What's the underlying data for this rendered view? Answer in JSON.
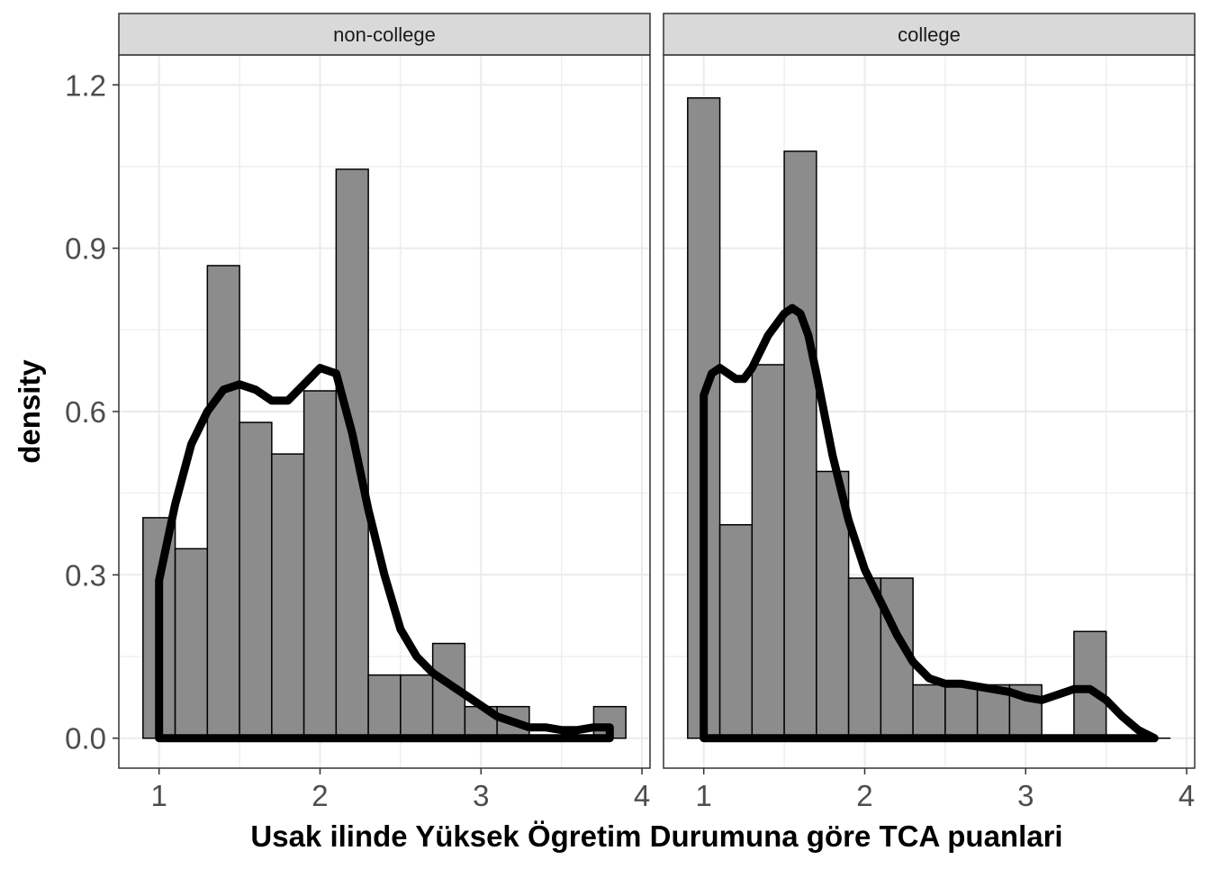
{
  "chart_data": {
    "type": "histogram",
    "xlabel": "Usak ilinde Yüksek Ögretim Durumuna göre TCA puanlari",
    "ylabel": "density",
    "xlim": [
      0.75,
      4.05
    ],
    "ylim": [
      -0.055,
      1.255
    ],
    "x_ticks": [
      1,
      2,
      3,
      4
    ],
    "y_ticks": [
      0.0,
      0.3,
      0.6,
      0.9,
      1.2
    ],
    "y_tick_labels": [
      "0.0",
      "0.3",
      "0.6",
      "0.9",
      "1.2"
    ],
    "grid": true,
    "bin_width": 0.2,
    "colors": {
      "bar_fill": "#8c8c8c",
      "bar_stroke": "#000000",
      "density_line": "#000000",
      "strip_fill": "#d9d9d9",
      "grid": "#ebebeb"
    },
    "panels": [
      {
        "strip": "non-college",
        "bins": [
          {
            "x0": 0.9,
            "x1": 1.1,
            "density": 0.405
          },
          {
            "x0": 1.1,
            "x1": 1.3,
            "density": 0.348
          },
          {
            "x0": 1.3,
            "x1": 1.5,
            "density": 0.868
          },
          {
            "x0": 1.5,
            "x1": 1.7,
            "density": 0.58
          },
          {
            "x0": 1.7,
            "x1": 1.9,
            "density": 0.522
          },
          {
            "x0": 1.9,
            "x1": 2.1,
            "density": 0.638
          },
          {
            "x0": 2.1,
            "x1": 2.3,
            "density": 1.045
          },
          {
            "x0": 2.3,
            "x1": 2.5,
            "density": 0.116
          },
          {
            "x0": 2.5,
            "x1": 2.7,
            "density": 0.116
          },
          {
            "x0": 2.7,
            "x1": 2.9,
            "density": 0.174
          },
          {
            "x0": 2.9,
            "x1": 3.1,
            "density": 0.058
          },
          {
            "x0": 3.1,
            "x1": 3.3,
            "density": 0.058
          },
          {
            "x0": 3.3,
            "x1": 3.5,
            "density": 0.0
          },
          {
            "x0": 3.5,
            "x1": 3.7,
            "density": 0.0
          },
          {
            "x0": 3.7,
            "x1": 3.9,
            "density": 0.058
          }
        ],
        "density_curve": {
          "x": [
            1.0,
            1.0,
            1.1,
            1.2,
            1.3,
            1.4,
            1.5,
            1.6,
            1.7,
            1.8,
            1.9,
            2.0,
            2.1,
            2.2,
            2.3,
            2.4,
            2.5,
            2.6,
            2.7,
            2.8,
            2.9,
            3.0,
            3.1,
            3.2,
            3.3,
            3.4,
            3.5,
            3.6,
            3.7,
            3.8,
            3.8
          ],
          "y": [
            0.0,
            0.29,
            0.43,
            0.54,
            0.6,
            0.64,
            0.65,
            0.64,
            0.62,
            0.62,
            0.65,
            0.68,
            0.67,
            0.56,
            0.42,
            0.3,
            0.2,
            0.15,
            0.12,
            0.1,
            0.08,
            0.06,
            0.04,
            0.03,
            0.02,
            0.02,
            0.015,
            0.015,
            0.02,
            0.02,
            0.0
          ]
        }
      },
      {
        "strip": "college",
        "bins": [
          {
            "x0": 0.9,
            "x1": 1.1,
            "density": 1.176
          },
          {
            "x0": 1.1,
            "x1": 1.3,
            "density": 0.392
          },
          {
            "x0": 1.3,
            "x1": 1.5,
            "density": 0.686
          },
          {
            "x0": 1.5,
            "x1": 1.7,
            "density": 1.078
          },
          {
            "x0": 1.7,
            "x1": 1.9,
            "density": 0.49
          },
          {
            "x0": 1.9,
            "x1": 2.1,
            "density": 0.294
          },
          {
            "x0": 2.1,
            "x1": 2.3,
            "density": 0.294
          },
          {
            "x0": 2.3,
            "x1": 2.5,
            "density": 0.098
          },
          {
            "x0": 2.5,
            "x1": 2.7,
            "density": 0.098
          },
          {
            "x0": 2.7,
            "x1": 2.9,
            "density": 0.098
          },
          {
            "x0": 2.9,
            "x1": 3.1,
            "density": 0.098
          },
          {
            "x0": 3.1,
            "x1": 3.3,
            "density": 0.0
          },
          {
            "x0": 3.3,
            "x1": 3.5,
            "density": 0.196
          },
          {
            "x0": 3.5,
            "x1": 3.7,
            "density": 0.0
          },
          {
            "x0": 3.7,
            "x1": 3.9,
            "density": 0.0
          }
        ],
        "density_curve": {
          "x": [
            1.0,
            1.0,
            1.05,
            1.1,
            1.15,
            1.2,
            1.25,
            1.3,
            1.35,
            1.4,
            1.5,
            1.55,
            1.6,
            1.65,
            1.7,
            1.8,
            1.9,
            2.0,
            2.1,
            2.2,
            2.3,
            2.4,
            2.5,
            2.6,
            2.7,
            2.8,
            2.9,
            3.0,
            3.1,
            3.2,
            3.3,
            3.4,
            3.5,
            3.6,
            3.7,
            3.8,
            3.8
          ],
          "y": [
            0.0,
            0.63,
            0.67,
            0.68,
            0.67,
            0.66,
            0.66,
            0.68,
            0.71,
            0.74,
            0.78,
            0.79,
            0.78,
            0.74,
            0.67,
            0.52,
            0.4,
            0.31,
            0.25,
            0.19,
            0.14,
            0.11,
            0.1,
            0.1,
            0.095,
            0.09,
            0.085,
            0.075,
            0.07,
            0.08,
            0.09,
            0.09,
            0.07,
            0.04,
            0.015,
            0.0,
            0.0
          ]
        }
      }
    ]
  }
}
